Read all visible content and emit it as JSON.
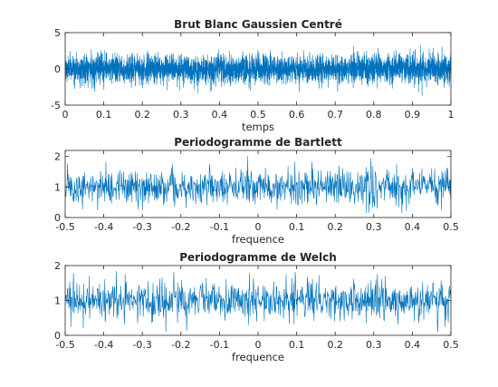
{
  "chart_data": [
    {
      "type": "line",
      "title": "Brut Blanc Gaussien Centré",
      "xlabel": "temps",
      "ylabel": "",
      "xlim": [
        0,
        1
      ],
      "ylim": [
        -5,
        5
      ],
      "xticks": [
        "0",
        "0.1",
        "0.2",
        "0.3",
        "0.4",
        "0.5",
        "0.6",
        "0.7",
        "0.8",
        "0.9",
        "1"
      ],
      "yticks": [
        "-5",
        "0",
        "5"
      ],
      "grid": false,
      "legend": "none",
      "series_color": "#0072BD",
      "signal": {
        "samples": 4096,
        "mean": 0,
        "std": 1,
        "x_range": [
          0,
          1
        ]
      }
    },
    {
      "type": "line",
      "title": "Periodogramme de Bartlett",
      "xlabel": "frequence",
      "ylabel": "",
      "xlim": [
        -0.5,
        0.5
      ],
      "ylim": [
        0,
        2.2
      ],
      "xticks": [
        "-0.5",
        "-0.4",
        "-0.3",
        "-0.2",
        "-0.1",
        "0",
        "0.1",
        "0.2",
        "0.3",
        "0.4",
        "0.5"
      ],
      "yticks": [
        "0",
        "1",
        "2"
      ],
      "grid": false,
      "legend": "none",
      "series_color": "#0072BD",
      "signal": {
        "samples": 1024,
        "mean": 1,
        "std": 0.3,
        "x_range": [
          -0.5,
          0.5
        ]
      }
    },
    {
      "type": "line",
      "title": "Periodogramme de Welch",
      "xlabel": "frequence",
      "ylabel": "",
      "xlim": [
        -0.5,
        0.5
      ],
      "ylim": [
        0,
        2
      ],
      "xticks": [
        "-0.5",
        "-0.4",
        "-0.3",
        "-0.2",
        "-0.1",
        "0",
        "0.1",
        "0.2",
        "0.3",
        "0.4",
        "0.5"
      ],
      "yticks": [
        "0",
        "1",
        "2"
      ],
      "grid": false,
      "legend": "none",
      "series_color": "#0072BD",
      "signal": {
        "samples": 1024,
        "mean": 1,
        "std": 0.28,
        "x_range": [
          -0.5,
          0.5
        ]
      }
    }
  ]
}
